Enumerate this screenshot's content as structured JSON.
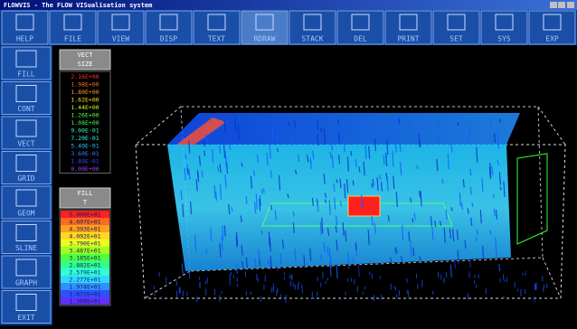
{
  "window": {
    "title": "FLOWVIS - The FLOW VISualisation system"
  },
  "toolbar": [
    "HELP",
    "FILE",
    "VIEW",
    "DISP",
    "TEXT",
    "RDRAW",
    "STACK",
    "DEL",
    "PRINT",
    "SET",
    "SYS",
    "EXP"
  ],
  "sidebar": [
    "FILL",
    "CONT",
    "VECT",
    "GRID",
    "GEOM",
    "SLINE",
    "GRAPH",
    "EXIT"
  ],
  "legends": [
    {
      "title": [
        "VECT",
        "SIZE"
      ],
      "style": "text",
      "entries": [
        "2.16E+00",
        "1.98E+00",
        "1.80E+00",
        "1.62E+00",
        "1.44E+00",
        "1.26E+00",
        "1.08E+00",
        "9.00E-01",
        "7.20E-01",
        "5.40E-01",
        "3.60E-01",
        "1.80E-01",
        "0.00E+00"
      ],
      "colors": [
        "#ff3030",
        "#ff7020",
        "#ffa020",
        "#ffe020",
        "#c8ff20",
        "#70ff30",
        "#30ff60",
        "#30ffb0",
        "#30ffff",
        "#30c0ff",
        "#3080ff",
        "#4040ff",
        "#a040ff"
      ]
    },
    {
      "title": [
        "FILL",
        "T"
      ],
      "style": "cell",
      "entries": [
        "5.000E+01",
        "4.697E+01",
        "4.393E+01",
        "4.092E+01",
        "3.790E+01",
        "3.487E+01",
        "3.185E+01",
        "2.882E+01",
        "2.579E+01",
        "2.277E+01",
        "1.974E+01",
        "1.672E+01",
        "1.369E+01"
      ],
      "colors": [
        "#ff2020",
        "#ff6a20",
        "#ffa020",
        "#ffd820",
        "#e8ff20",
        "#a0ff20",
        "#50ff40",
        "#30ff90",
        "#30ffd8",
        "#30d8ff",
        "#3090ff",
        "#3050ff",
        "#6030ff"
      ]
    }
  ]
}
